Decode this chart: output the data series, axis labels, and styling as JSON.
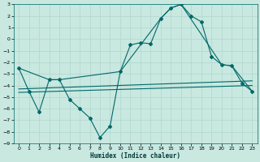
{
  "xlabel": "Humidex (Indice chaleur)",
  "bg_color": "#c8e8e0",
  "grid_color": "#b0d8d0",
  "line_color": "#006868",
  "xlim": [
    -0.5,
    23.5
  ],
  "ylim": [
    -9,
    3
  ],
  "yticks": [
    3,
    2,
    1,
    0,
    -1,
    -2,
    -3,
    -4,
    -5,
    -6,
    -7,
    -8,
    -9
  ],
  "xticks": [
    0,
    1,
    2,
    3,
    4,
    5,
    6,
    7,
    8,
    9,
    10,
    11,
    12,
    13,
    14,
    15,
    16,
    17,
    18,
    19,
    20,
    21,
    22,
    23
  ],
  "series1_x": [
    0,
    1,
    2,
    3,
    4,
    5,
    6,
    7,
    8,
    9,
    10,
    11,
    12,
    13,
    14,
    15,
    16,
    17,
    18,
    19,
    20,
    21,
    22,
    23
  ],
  "series1_y": [
    -2.5,
    -4.5,
    -6.3,
    -3.5,
    -3.5,
    -5.2,
    -6.0,
    -6.8,
    -8.5,
    -7.5,
    -2.8,
    -0.5,
    -0.3,
    -0.4,
    1.8,
    2.7,
    3.0,
    2.0,
    1.5,
    -1.5,
    -2.2,
    -2.3,
    -3.8,
    -4.5
  ],
  "series2_x": [
    0,
    3,
    4,
    10,
    14,
    15,
    16,
    20,
    21,
    23
  ],
  "series2_y": [
    -2.5,
    -3.5,
    -3.5,
    -2.8,
    1.8,
    2.7,
    3.0,
    -2.2,
    -2.3,
    -4.5
  ],
  "trend1_x": [
    0,
    23
  ],
  "trend1_y": [
    -4.3,
    -3.6
  ],
  "trend2_x": [
    0,
    23
  ],
  "trend2_y": [
    -4.6,
    -4.0
  ]
}
